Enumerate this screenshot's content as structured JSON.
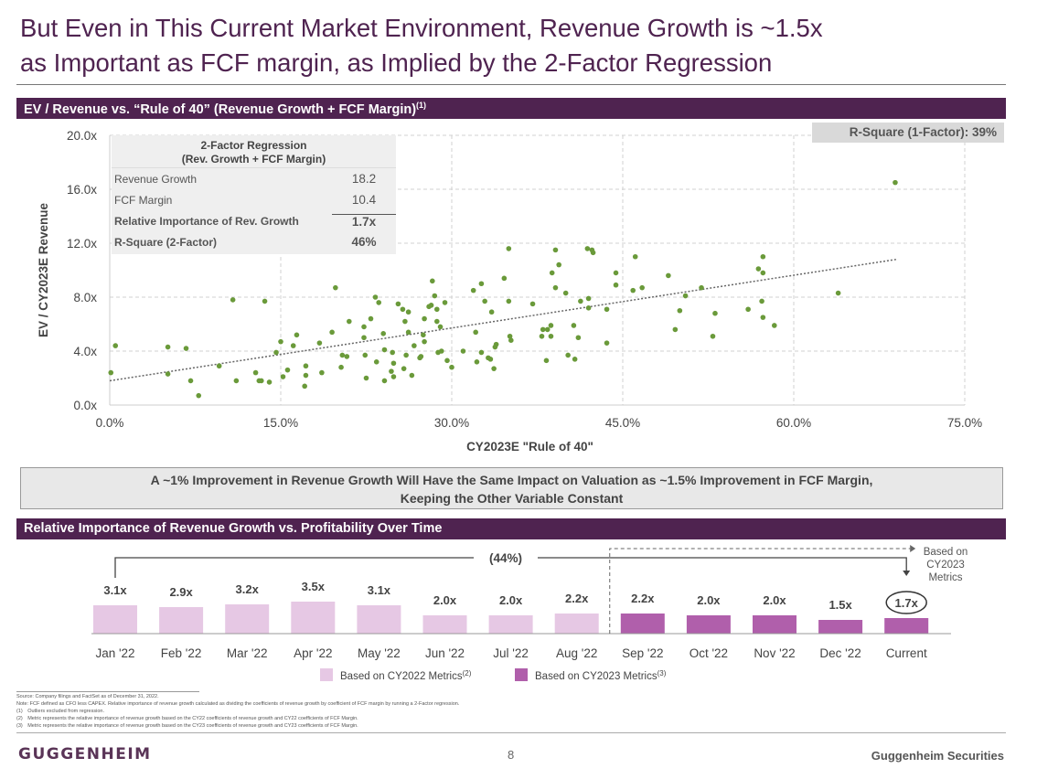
{
  "title": {
    "line1": "But Even in This Current Market Environment, Revenue Growth is ~1.5x",
    "line2": "as Important as FCF margin, as Implied by the 2-Factor Regression"
  },
  "section1": {
    "label": "EV / Revenue vs. “Rule of 40” (Revenue Growth + FCF Margin)",
    "sup": "(1)"
  },
  "r_square_1": "R-Square (1-Factor): 39%",
  "regression_table": {
    "header1": "2-Factor Regression",
    "header2": "(Rev. Growth + FCF Margin)",
    "rows": [
      {
        "label": "Revenue Growth",
        "value": "18.2"
      },
      {
        "label": "FCF Margin",
        "value": "10.4"
      },
      {
        "label": "Relative Importance of Rev. Growth",
        "value": "1.7x"
      },
      {
        "label": "R-Square (2-Factor)",
        "value": "46%"
      }
    ]
  },
  "callout": {
    "line1": "A ~1% Improvement in Revenue Growth Will Have the Same Impact on Valuation as ~1.5% Improvement in FCF Margin,",
    "line2": "Keeping the Other Variable Constant"
  },
  "section2": {
    "label": "Relative Importance of Revenue Growth vs. Profitability Over Time"
  },
  "chart_data": [
    {
      "type": "scatter",
      "title": "EV / Revenue vs. Rule of 40",
      "xlabel": "CY2023E \"Rule of 40\"",
      "ylabel": "EV / CY2023E Revenue",
      "xlim": [
        0,
        75
      ],
      "ylim": [
        0,
        20
      ],
      "xticks": [
        "0.0%",
        "15.0%",
        "30.0%",
        "45.0%",
        "60.0%",
        "75.0%"
      ],
      "yticks": [
        "0.0x",
        "4.0x",
        "8.0x",
        "12.0x",
        "16.0x",
        "20.0x"
      ],
      "grid": true,
      "color": "#6a9a3a",
      "trendline": {
        "x": [
          0,
          69
        ],
        "y": [
          1.8,
          10.8
        ]
      },
      "points": [
        [
          0.1,
          2.4
        ],
        [
          0.5,
          4.4
        ],
        [
          5.1,
          4.3
        ],
        [
          6.7,
          4.2
        ],
        [
          5.1,
          2.3
        ],
        [
          7.1,
          1.8
        ],
        [
          7.8,
          0.7
        ],
        [
          9.6,
          2.9
        ],
        [
          10.8,
          7.8
        ],
        [
          13.6,
          7.7
        ],
        [
          11.1,
          1.8
        ],
        [
          12.8,
          2.4
        ],
        [
          13.1,
          1.8
        ],
        [
          13.3,
          1.8
        ],
        [
          14.0,
          1.7
        ],
        [
          14.6,
          3.9
        ],
        [
          15.0,
          4.7
        ],
        [
          15.2,
          2.1
        ],
        [
          15.6,
          2.6
        ],
        [
          16.1,
          4.4
        ],
        [
          16.4,
          5.2
        ],
        [
          17.1,
          1.4
        ],
        [
          17.2,
          2.9
        ],
        [
          17.2,
          2.2
        ],
        [
          18.4,
          4.6
        ],
        [
          18.6,
          2.4
        ],
        [
          19.5,
          5.4
        ],
        [
          19.8,
          8.7
        ],
        [
          20.3,
          2.8
        ],
        [
          20.4,
          3.7
        ],
        [
          20.8,
          3.6
        ],
        [
          21.0,
          6.2
        ],
        [
          22.3,
          5.8
        ],
        [
          22.3,
          5.0
        ],
        [
          22.4,
          3.7
        ],
        [
          22.5,
          2.0
        ],
        [
          22.9,
          6.4
        ],
        [
          23.3,
          8.0
        ],
        [
          23.4,
          3.2
        ],
        [
          23.6,
          7.6
        ],
        [
          24.0,
          5.3
        ],
        [
          24.1,
          4.1
        ],
        [
          24.1,
          1.8
        ],
        [
          24.7,
          2.5
        ],
        [
          24.8,
          3.9
        ],
        [
          24.9,
          2.1
        ],
        [
          24.9,
          3.1
        ],
        [
          25.3,
          7.5
        ],
        [
          25.7,
          7.1
        ],
        [
          25.9,
          6.2
        ],
        [
          26.0,
          3.7
        ],
        [
          26.2,
          5.4
        ],
        [
          26.2,
          6.9
        ],
        [
          25.8,
          2.7
        ],
        [
          26.5,
          2.2
        ],
        [
          26.7,
          4.4
        ],
        [
          27.2,
          3.5
        ],
        [
          27.3,
          3.6
        ],
        [
          27.5,
          5.2
        ],
        [
          27.6,
          6.4
        ],
        [
          27.6,
          4.7
        ],
        [
          28.0,
          7.3
        ],
        [
          28.2,
          7.4
        ],
        [
          28.3,
          9.2
        ],
        [
          28.5,
          8.1
        ],
        [
          28.7,
          7.1
        ],
        [
          28.7,
          6.2
        ],
        [
          29.0,
          5.8
        ],
        [
          28.8,
          3.9
        ],
        [
          29.1,
          4.0
        ],
        [
          29.4,
          7.6
        ],
        [
          29.6,
          3.3
        ],
        [
          30.0,
          2.8
        ],
        [
          31.0,
          4.0
        ],
        [
          31.9,
          8.5
        ],
        [
          32.1,
          5.4
        ],
        [
          32.2,
          3.2
        ],
        [
          32.6,
          9.0
        ],
        [
          32.6,
          3.9
        ],
        [
          32.9,
          7.7
        ],
        [
          33.2,
          3.5
        ],
        [
          33.4,
          3.4
        ],
        [
          33.5,
          6.9
        ],
        [
          33.8,
          4.3
        ],
        [
          33.9,
          4.5
        ],
        [
          33.7,
          2.7
        ],
        [
          34.6,
          9.4
        ],
        [
          35.0,
          7.7
        ],
        [
          35.1,
          5.1
        ],
        [
          35.2,
          4.8
        ],
        [
          35.0,
          11.6
        ],
        [
          37.1,
          7.5
        ],
        [
          37.9,
          5.1
        ],
        [
          38.0,
          5.6
        ],
        [
          38.4,
          5.6
        ],
        [
          38.7,
          5.9
        ],
        [
          38.7,
          5.1
        ],
        [
          38.3,
          3.3
        ],
        [
          38.8,
          9.8
        ],
        [
          39.1,
          11.5
        ],
        [
          39.1,
          8.7
        ],
        [
          39.4,
          10.4
        ],
        [
          40.0,
          8.3
        ],
        [
          40.2,
          3.7
        ],
        [
          40.7,
          5.9
        ],
        [
          40.8,
          3.4
        ],
        [
          41.1,
          5.0
        ],
        [
          41.3,
          7.7
        ],
        [
          41.9,
          11.6
        ],
        [
          42.3,
          11.5
        ],
        [
          42.4,
          11.3
        ],
        [
          42.0,
          7.9
        ],
        [
          42.0,
          7.2
        ],
        [
          43.6,
          7.1
        ],
        [
          43.6,
          4.6
        ],
        [
          44.4,
          9.8
        ],
        [
          44.4,
          8.9
        ],
        [
          45.9,
          8.5
        ],
        [
          46.1,
          11.0
        ],
        [
          46.7,
          8.7
        ],
        [
          49.0,
          9.6
        ],
        [
          49.6,
          5.6
        ],
        [
          50.0,
          7.0
        ],
        [
          50.5,
          8.1
        ],
        [
          51.9,
          8.7
        ],
        [
          52.9,
          5.1
        ],
        [
          53.1,
          6.8
        ],
        [
          56.0,
          7.1
        ],
        [
          56.9,
          10.1
        ],
        [
          57.3,
          11.0
        ],
        [
          57.3,
          9.8
        ],
        [
          57.2,
          7.7
        ],
        [
          57.3,
          6.5
        ],
        [
          58.3,
          5.9
        ],
        [
          63.9,
          8.3
        ],
        [
          68.9,
          16.5
        ]
      ]
    },
    {
      "type": "bar",
      "title": "Relative Importance of Revenue Growth vs. Profitability Over Time",
      "categories": [
        "Jan '22",
        "Feb '22",
        "Mar '22",
        "Apr '22",
        "May '22",
        "Jun '22",
        "Jul '22",
        "Aug '22",
        "Sep '22",
        "Oct '22",
        "Nov '22",
        "Dec '22",
        "Current"
      ],
      "values": [
        3.1,
        2.9,
        3.2,
        3.5,
        3.1,
        2.0,
        2.0,
        2.2,
        2.2,
        2.0,
        2.0,
        1.5,
        1.7
      ],
      "labels": [
        "3.1x",
        "2.9x",
        "3.2x",
        "3.5x",
        "3.1x",
        "2.0x",
        "2.0x",
        "2.2x",
        "2.2x",
        "2.0x",
        "2.0x",
        "1.5x",
        "1.7x"
      ],
      "series_index": [
        0,
        0,
        0,
        0,
        0,
        0,
        0,
        0,
        1,
        1,
        1,
        1,
        1
      ],
      "legend": [
        {
          "name": "Based on CY2022 Metrics",
          "sup": "(2)",
          "color": "#e6c8e4"
        },
        {
          "name": "Based on CY2023 Metrics",
          "sup": "(3)",
          "color": "#b05fab"
        }
      ],
      "change_annotation": "(44%)",
      "side_note": [
        "Based on",
        "CY2023",
        "Metrics"
      ]
    }
  ],
  "footnotes": [
    "Source: Company filings and FactSet as of December 31, 2022.",
    "Note: FCF defined as CFO less CAPEX. Relative importance of revenue growth calculated as dividing the coefficients of revenue growth by coefficient of FCF margin by running a 2-Factor regression.",
    "(1) Outliers excluded from regression.",
    "(2) Metric represents the relative importance of revenue growth based on the CY22 coefficients of revenue growth and CY22 coefficients of FCF Margin.",
    "(3) Metric represents the relative importance of revenue growth based on the CY23 coefficients of revenue growth and CY23 coefficients of FCF Margin."
  ],
  "footer": {
    "logo": "GUGGENHEIM",
    "page": "8",
    "company": "Guggenheim Securities"
  }
}
